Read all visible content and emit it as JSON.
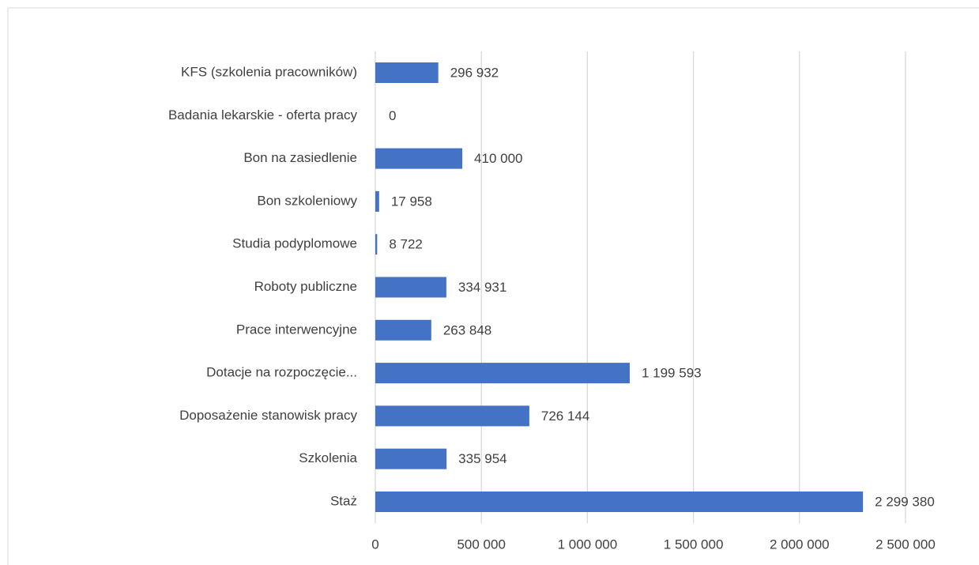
{
  "chart_data": {
    "type": "barh",
    "categories": [
      "KFS (szkolenia pracowników)",
      "Badania lekarskie - oferta pracy",
      "Bon na zasiedlenie",
      "Bon szkoleniowy",
      "Studia podyplomowe",
      "Roboty publiczne",
      "Prace interwencyjne",
      "Dotacje na rozpoczęcie...",
      "Doposażenie stanowisk pracy",
      "Szkolenia",
      "Staż"
    ],
    "values": [
      296932,
      0,
      410000,
      17958,
      8722,
      334931,
      263848,
      1199593,
      726144,
      335954,
      2299380
    ],
    "value_labels": [
      "296 932",
      "0",
      "410 000",
      "17 958",
      "8 722",
      "334 931",
      "263 848",
      "1 199 593",
      "726 144",
      "335 954",
      "2 299 380"
    ],
    "color": "#4472c4",
    "xlim": [
      0,
      2500000
    ],
    "xticks": [
      0,
      {
        "value": 500000,
        "label": "500 000"
      },
      {
        "value": 1000000,
        "label": "1 000 000"
      },
      {
        "value": 1500000,
        "label": "1 500 000"
      },
      {
        "value": 2000000,
        "label": "2 000 000"
      },
      {
        "value": 2500000,
        "label": "2 500 000"
      }
    ],
    "grid": true
  }
}
